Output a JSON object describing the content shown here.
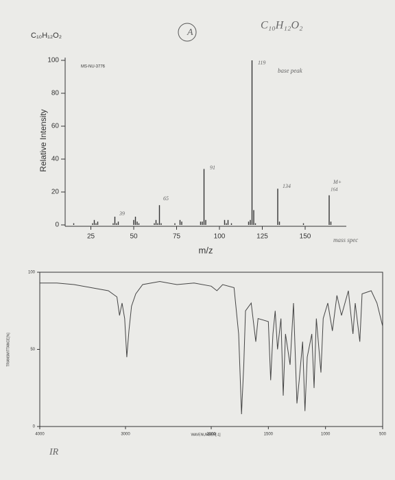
{
  "header": {
    "formula": "C₁₀H₁₂O₂"
  },
  "handwritten": [
    "A",
    "C₁₀H₁₂O₂",
    "119",
    "base peak",
    "134",
    "M+",
    "164",
    "91",
    "65",
    "39",
    "mass spec",
    "IR"
  ],
  "chart_data": [
    {
      "type": "bar",
      "label": "MS-NU-3776",
      "xlabel": "m/z",
      "ylabel": "Relative Intensity",
      "color": "#333333",
      "x": [
        15,
        26,
        27,
        28,
        29,
        38,
        39,
        40,
        41,
        50,
        51,
        52,
        53,
        62,
        63,
        64,
        65,
        66,
        74,
        77,
        78,
        89,
        90,
        91,
        92,
        103,
        104,
        105,
        107,
        117,
        118,
        119,
        120,
        121,
        134,
        135,
        149,
        164,
        165
      ],
      "values": [
        1,
        1,
        3,
        1,
        2,
        1,
        5,
        1,
        2,
        3,
        5,
        2,
        1,
        1,
        3,
        1,
        12,
        1,
        1,
        3,
        2,
        2,
        2,
        34,
        3,
        3,
        1,
        3,
        1,
        2,
        3,
        100,
        9,
        1,
        22,
        2,
        1,
        18,
        2
      ],
      "xlim": [
        10,
        174
      ],
      "xticks": [
        25,
        50,
        75,
        100,
        125,
        150
      ],
      "ylim": [
        0,
        100
      ],
      "yticks": [
        0,
        20,
        40,
        60,
        80,
        100
      ]
    },
    {
      "type": "line",
      "xlabel": "WAVENUMBER[-1]",
      "ylabel": "TRANSMITTANCE[%]",
      "color": "#444444",
      "x": [
        4000,
        3800,
        3600,
        3400,
        3200,
        3100,
        3070,
        3040,
        3010,
        2985,
        2960,
        2930,
        2880,
        2800,
        2600,
        2400,
        2200,
        2000,
        1950,
        1900,
        1800,
        1760,
        1735,
        1715,
        1700,
        1650,
        1610,
        1590,
        1500,
        1480,
        1460,
        1440,
        1420,
        1390,
        1370,
        1350,
        1310,
        1280,
        1250,
        1230,
        1200,
        1180,
        1160,
        1120,
        1100,
        1080,
        1040,
        1020,
        980,
        940,
        900,
        860,
        800,
        760,
        740,
        700,
        680,
        600,
        550,
        500
      ],
      "values": [
        93,
        93,
        92,
        90,
        88,
        84,
        72,
        80,
        70,
        45,
        62,
        78,
        86,
        92,
        94,
        92,
        93,
        91,
        88,
        92,
        90,
        60,
        8,
        40,
        75,
        80,
        55,
        70,
        68,
        30,
        60,
        75,
        50,
        70,
        20,
        60,
        40,
        80,
        15,
        30,
        55,
        10,
        45,
        60,
        25,
        70,
        35,
        70,
        80,
        62,
        85,
        72,
        88,
        60,
        80,
        55,
        86,
        88,
        80,
        65
      ],
      "xlim": [
        4000,
        500
      ],
      "xticks": [
        4000,
        3000,
        2000,
        1500,
        1000,
        500
      ],
      "ylim": [
        0,
        100
      ],
      "yticks": [
        0,
        50,
        100
      ]
    }
  ]
}
